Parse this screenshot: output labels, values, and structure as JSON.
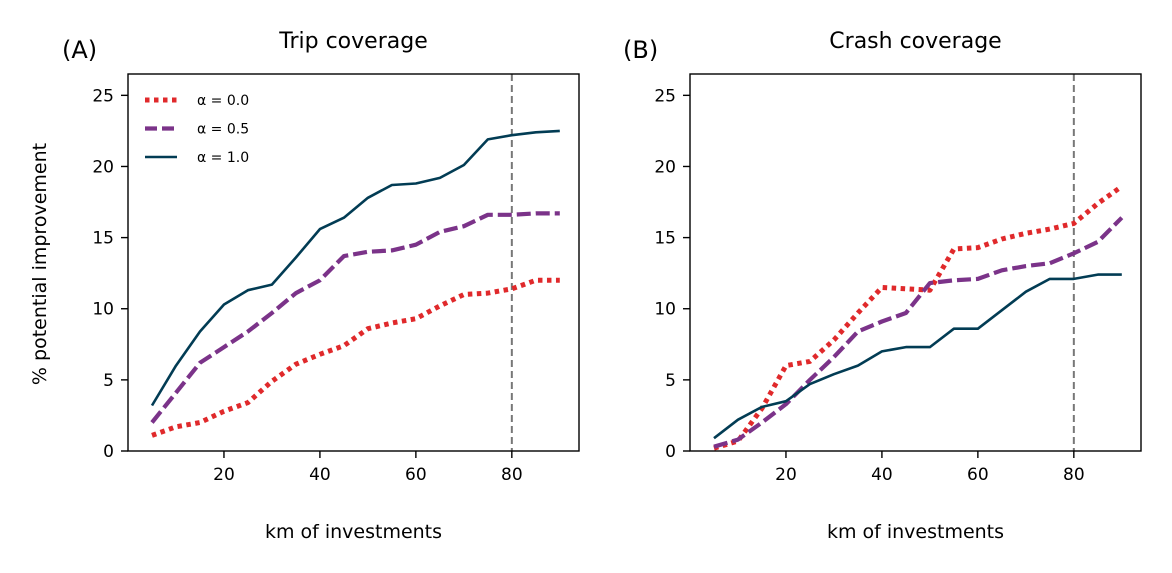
{
  "chart_data": [
    {
      "type": "line",
      "panel_label": "(A)",
      "title": "Trip coverage",
      "xlabel": "km of investments",
      "ylabel": "% potential improvement",
      "xlim": [
        0,
        94
      ],
      "ylim": [
        0,
        26.5
      ],
      "xticks": [
        20,
        40,
        60,
        80
      ],
      "yticks": [
        0,
        5,
        10,
        15,
        20,
        25
      ],
      "vline_x": 80,
      "legend": "top-left",
      "series": [
        {
          "name": "α = 0.0",
          "color": "#e0292b",
          "style": "dotted",
          "x": [
            5,
            10,
            15,
            20,
            25,
            30,
            35,
            40,
            45,
            50,
            55,
            60,
            65,
            70,
            75,
            80,
            85,
            90
          ],
          "y": [
            1.1,
            1.7,
            2.0,
            2.8,
            3.4,
            4.9,
            6.1,
            6.8,
            7.4,
            8.6,
            9.0,
            9.3,
            10.2,
            11.0,
            11.1,
            11.4,
            12.0,
            12.0
          ]
        },
        {
          "name": "α = 0.5",
          "color": "#7b3389",
          "style": "dashed",
          "x": [
            5,
            10,
            15,
            20,
            25,
            30,
            35,
            40,
            45,
            50,
            55,
            60,
            65,
            70,
            75,
            80,
            85,
            90
          ],
          "y": [
            2.0,
            4.1,
            6.2,
            7.3,
            8.4,
            9.7,
            11.1,
            12.0,
            13.7,
            14.0,
            14.1,
            14.5,
            15.4,
            15.8,
            16.6,
            16.6,
            16.7,
            16.7
          ]
        },
        {
          "name": "α = 1.0",
          "color": "#023c54",
          "style": "solid",
          "x": [
            5,
            10,
            15,
            20,
            25,
            30,
            35,
            40,
            45,
            50,
            55,
            60,
            65,
            70,
            75,
            80,
            85,
            90
          ],
          "y": [
            3.2,
            6.0,
            8.4,
            10.3,
            11.3,
            11.7,
            13.6,
            15.6,
            16.4,
            17.8,
            18.7,
            18.8,
            19.2,
            20.1,
            21.9,
            22.2,
            22.4,
            22.5
          ]
        }
      ]
    },
    {
      "type": "line",
      "panel_label": "(B)",
      "title": "Crash coverage",
      "xlabel": "km of investments",
      "ylabel": "",
      "xlim": [
        0,
        94
      ],
      "ylim": [
        0,
        26.5
      ],
      "xticks": [
        20,
        40,
        60,
        80
      ],
      "yticks": [
        0,
        5,
        10,
        15,
        20,
        25
      ],
      "vline_x": 80,
      "legend": "none",
      "series": [
        {
          "name": "α = 0.0",
          "color": "#e0292b",
          "style": "dotted",
          "x": [
            5,
            10,
            15,
            20,
            25,
            30,
            35,
            40,
            45,
            50,
            55,
            60,
            65,
            70,
            75,
            80,
            85,
            90
          ],
          "y": [
            0.2,
            0.7,
            3.0,
            6.0,
            6.3,
            7.8,
            9.7,
            11.5,
            11.4,
            11.3,
            14.2,
            14.3,
            14.9,
            15.3,
            15.6,
            16.0,
            17.4,
            18.6
          ]
        },
        {
          "name": "α = 0.5",
          "color": "#7b3389",
          "style": "dashed",
          "x": [
            5,
            10,
            15,
            20,
            25,
            30,
            35,
            40,
            45,
            50,
            55,
            60,
            65,
            70,
            75,
            80,
            85,
            90
          ],
          "y": [
            0.3,
            0.8,
            2.0,
            3.3,
            5.0,
            6.6,
            8.4,
            9.1,
            9.7,
            11.8,
            12.0,
            12.1,
            12.7,
            13.0,
            13.2,
            13.9,
            14.7,
            16.4
          ]
        },
        {
          "name": "α = 1.0",
          "color": "#023c54",
          "style": "solid",
          "x": [
            5,
            10,
            15,
            20,
            25,
            30,
            35,
            40,
            45,
            50,
            55,
            60,
            65,
            70,
            75,
            80,
            85,
            90
          ],
          "y": [
            0.9,
            2.2,
            3.1,
            3.5,
            4.7,
            5.4,
            6.0,
            7.0,
            7.3,
            7.3,
            8.6,
            8.6,
            9.9,
            11.2,
            12.1,
            12.1,
            12.4,
            12.4
          ]
        }
      ]
    }
  ]
}
